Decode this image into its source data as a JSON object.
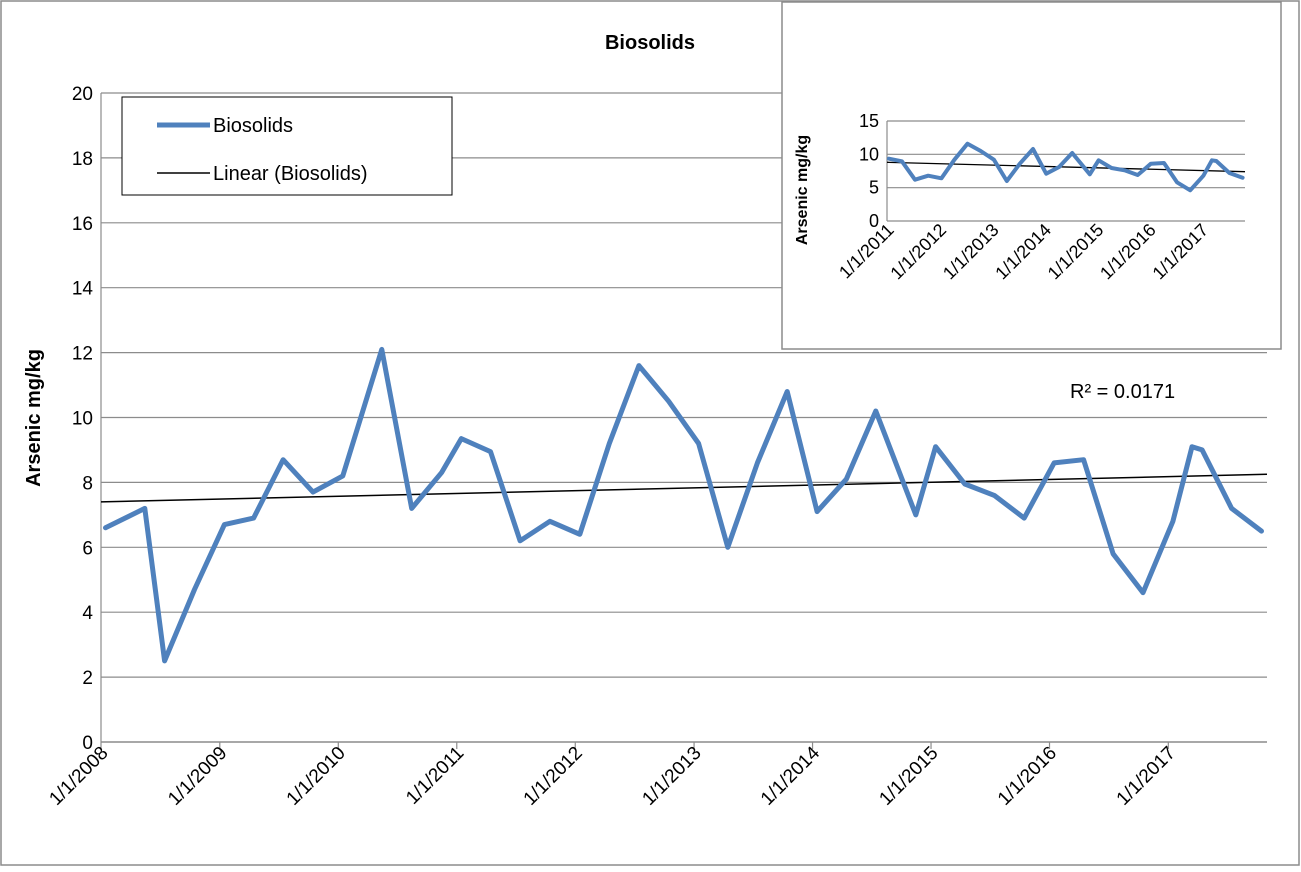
{
  "chart_data": [
    {
      "type": "line",
      "title": "Biosolids",
      "xlabel": "",
      "ylabel": "Arsenic mg/kg",
      "ylim": [
        0,
        20
      ],
      "yticks": [
        0,
        2,
        4,
        6,
        8,
        10,
        12,
        14,
        16,
        18,
        20
      ],
      "xlim": [
        "2008-01-01",
        "2017-11-01"
      ],
      "xtick_labels": [
        "1/1/2008",
        "1/1/2009",
        "1/1/2010",
        "1/1/2011",
        "1/1/2012",
        "1/1/2013",
        "1/1/2014",
        "1/1/2015",
        "1/1/2016",
        "1/1/2017"
      ],
      "grid": "horizontal",
      "legend_position": "top-left",
      "series": [
        {
          "name": "Biosolids",
          "color": "#4f81bd",
          "x": [
            "2008-01-15",
            "2008-05-15",
            "2008-07-15",
            "2008-10-15",
            "2009-01-15",
            "2009-04-15",
            "2009-07-15",
            "2009-10-15",
            "2010-01-15",
            "2010-05-15",
            "2010-08-15",
            "2010-11-15",
            "2011-01-15",
            "2011-04-15",
            "2011-07-15",
            "2011-10-15",
            "2012-01-15",
            "2012-04-15",
            "2012-07-15",
            "2012-10-15",
            "2013-01-15",
            "2013-04-15",
            "2013-07-15",
            "2013-10-15",
            "2014-01-15",
            "2014-04-15",
            "2014-07-15",
            "2014-11-15",
            "2015-01-15",
            "2015-04-15",
            "2015-07-15",
            "2015-10-15",
            "2016-01-15",
            "2016-04-15",
            "2016-07-15",
            "2016-10-15",
            "2017-01-15",
            "2017-03-15",
            "2017-04-15",
            "2017-07-15",
            "2017-10-15"
          ],
          "values": [
            6.6,
            7.2,
            2.5,
            4.7,
            6.7,
            6.9,
            8.7,
            7.7,
            8.2,
            12.1,
            7.2,
            8.3,
            9.35,
            8.95,
            6.2,
            6.8,
            6.4,
            9.2,
            11.6,
            10.5,
            9.2,
            6.0,
            8.6,
            10.8,
            7.1,
            8.1,
            10.2,
            7.0,
            9.1,
            7.95,
            7.6,
            6.9,
            8.6,
            8.7,
            5.8,
            4.6,
            6.8,
            9.1,
            9.0,
            7.2,
            6.5
          ]
        },
        {
          "name": "Linear (Biosolids)",
          "color": "#000000",
          "x": [
            "2008-01-01",
            "2017-11-01"
          ],
          "values": [
            7.4,
            8.25
          ]
        }
      ],
      "annotations": [
        {
          "text": "R² = 0.0171"
        }
      ]
    },
    {
      "type": "line",
      "title": "",
      "xlabel": "",
      "ylabel": "Arsenic mg/kg",
      "ylim": [
        0,
        15
      ],
      "yticks": [
        0,
        5,
        10,
        15
      ],
      "xlim": [
        "2011-01-01",
        "2017-11-01"
      ],
      "xtick_labels": [
        "1/1/2011",
        "1/1/2012",
        "1/1/2013",
        "1/1/2014",
        "1/1/2015",
        "1/1/2016",
        "1/1/2017"
      ],
      "grid": "horizontal",
      "legend": "none",
      "series": [
        {
          "name": "Biosolids",
          "color": "#4f81bd",
          "x": [
            "2011-01-15",
            "2011-04-15",
            "2011-07-15",
            "2011-10-15",
            "2012-01-15",
            "2012-04-15",
            "2012-07-15",
            "2012-10-15",
            "2013-01-15",
            "2013-04-15",
            "2013-07-15",
            "2013-10-15",
            "2014-01-15",
            "2014-04-15",
            "2014-07-15",
            "2014-11-15",
            "2015-01-15",
            "2015-04-15",
            "2015-07-15",
            "2015-10-15",
            "2016-01-15",
            "2016-04-15",
            "2016-07-15",
            "2016-10-15",
            "2017-01-15",
            "2017-03-15",
            "2017-04-15",
            "2017-07-15",
            "2017-10-15"
          ],
          "values": [
            9.35,
            8.95,
            6.2,
            6.8,
            6.4,
            9.2,
            11.6,
            10.5,
            9.2,
            6.0,
            8.6,
            10.8,
            7.1,
            8.1,
            10.2,
            7.0,
            9.1,
            7.95,
            7.6,
            6.9,
            8.6,
            8.7,
            5.8,
            4.6,
            6.8,
            9.1,
            9.0,
            7.2,
            6.5
          ]
        },
        {
          "name": "Linear (Biosolids)",
          "color": "#000000",
          "x": [
            "2011-01-01",
            "2017-11-01"
          ],
          "values": [
            8.8,
            7.4
          ]
        }
      ]
    }
  ]
}
